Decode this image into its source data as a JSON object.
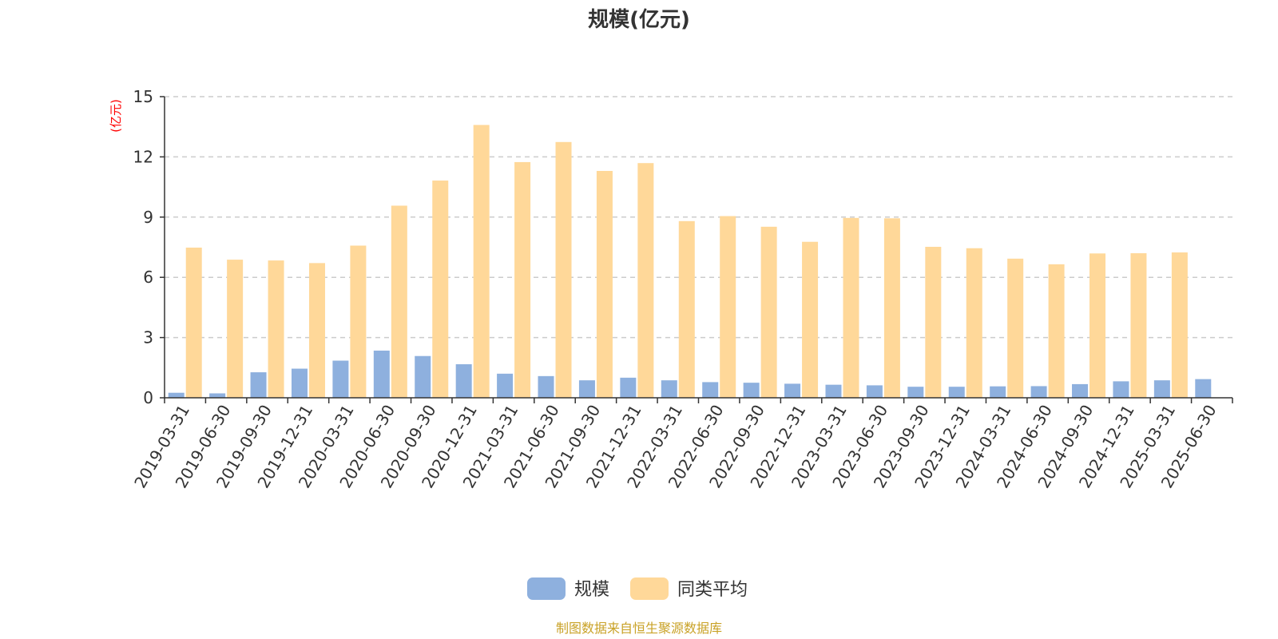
{
  "chart_data": {
    "type": "bar",
    "title": "规模(亿元)",
    "ylabel": "(亿元)",
    "ylim": [
      0,
      15
    ],
    "yticks": [
      "0",
      "3",
      "6",
      "9",
      "12",
      "15"
    ],
    "grid": true,
    "legend_position": "bottom-center",
    "categories": [
      "2019-03-31",
      "2019-06-30",
      "2019-09-30",
      "2019-12-31",
      "2020-03-31",
      "2020-06-30",
      "2020-09-30",
      "2020-12-31",
      "2021-03-31",
      "2021-06-30",
      "2021-09-30",
      "2021-12-31",
      "2022-03-31",
      "2022-06-30",
      "2022-09-30",
      "2022-12-31",
      "2023-03-31",
      "2023-06-30",
      "2023-09-30",
      "2023-12-31",
      "2024-03-31",
      "2024-06-30",
      "2024-09-30",
      "2024-12-31",
      "2025-03-31",
      "2025-06-30"
    ],
    "series": [
      {
        "name": "规模",
        "color": "#8eb0de",
        "values": [
          0.25,
          0.22,
          1.27,
          1.45,
          1.85,
          2.35,
          2.08,
          1.67,
          1.2,
          1.08,
          0.87,
          1.0,
          0.87,
          0.78,
          0.75,
          0.7,
          0.65,
          0.62,
          0.55,
          0.55,
          0.57,
          0.58,
          0.68,
          0.82,
          0.87,
          0.93
        ]
      },
      {
        "name": "同类平均",
        "color": "#ffd899",
        "values": [
          7.48,
          6.88,
          6.84,
          6.71,
          7.58,
          9.57,
          10.82,
          13.59,
          11.74,
          12.74,
          11.3,
          11.69,
          8.8,
          9.05,
          8.52,
          7.77,
          8.96,
          8.94,
          7.52,
          7.45,
          6.93,
          6.65,
          7.19,
          7.2,
          7.24,
          null
        ]
      }
    ]
  },
  "source_note": "制图数据来自恒生聚源数据库"
}
